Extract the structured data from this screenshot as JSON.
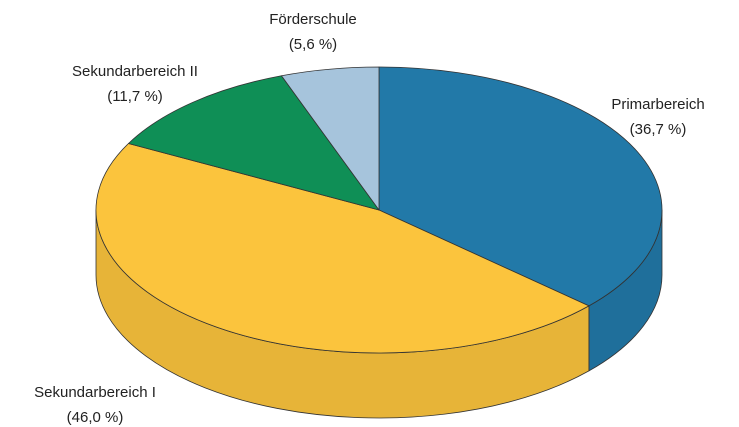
{
  "chart_data": {
    "type": "pie3d",
    "categories": [
      "Primarbereich",
      "Sekundarbereich I",
      "Sekundarbereich II",
      "Förderschule"
    ],
    "values": [
      36.7,
      46.0,
      11.7,
      5.6
    ],
    "value_labels": [
      "(36,7 %)",
      "(46,0 %)",
      "(11,7 %)",
      "(5,6 %)"
    ],
    "colors": [
      "#2279a8",
      "#fbc43d",
      "#0f8f56",
      "#a6c4dc"
    ]
  }
}
